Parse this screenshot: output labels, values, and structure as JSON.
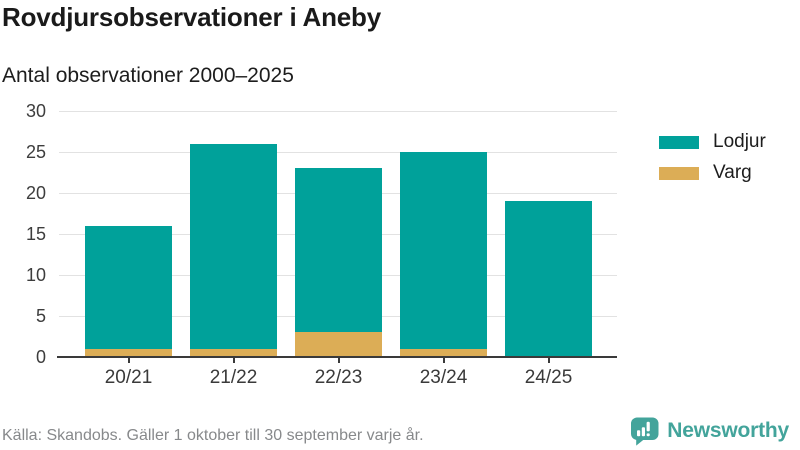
{
  "header": {
    "title": "Rovdjursobservationer i Aneby",
    "subtitle": "Antal observationer 2000–2025"
  },
  "chart_data": {
    "type": "bar",
    "stacked": true,
    "title": "Rovdjursobservationer i Aneby",
    "subtitle": "Antal observationer 2000–2025",
    "categories": [
      "20/21",
      "21/22",
      "22/23",
      "23/24",
      "24/25"
    ],
    "series": [
      {
        "name": "Lodjur",
        "color": "#00a19a",
        "values": [
          15,
          25,
          20,
          24,
          19
        ]
      },
      {
        "name": "Varg",
        "color": "#dcad56",
        "values": [
          1,
          1,
          3,
          1,
          0
        ]
      }
    ],
    "totals": [
      16,
      26,
      23,
      25,
      19
    ],
    "xlabel": "",
    "ylabel": "",
    "ylim": [
      0,
      30
    ],
    "yticks": [
      0,
      5,
      10,
      15,
      20,
      25,
      30
    ],
    "grid": true,
    "legend_position": "right"
  },
  "footer": {
    "source": "Källa: Skandobs. Gäller 1 oktober till 30 september varje år.",
    "brand": "Newsworthy"
  },
  "colors": {
    "lodjur": "#00a19a",
    "varg": "#dcad56",
    "brand_teal": "#43a49b",
    "gridline": "#e2e2e2",
    "axis": "#3a3a3a",
    "source_text": "#87898b"
  }
}
